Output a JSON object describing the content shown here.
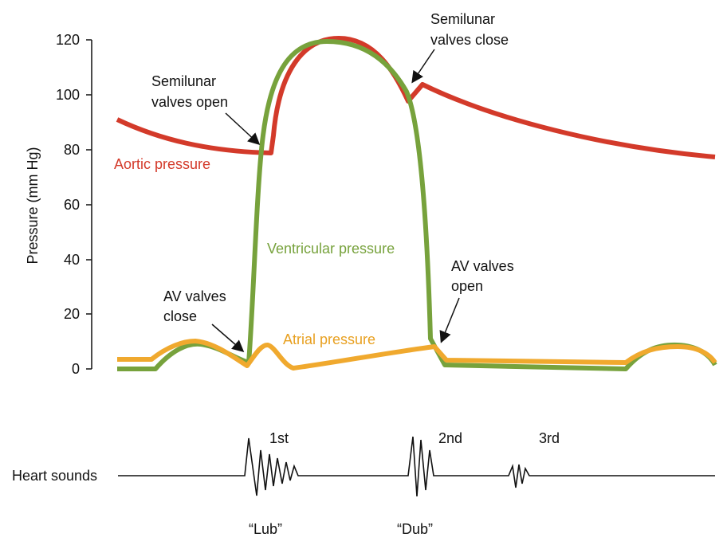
{
  "y_axis": {
    "label": "Pressure (mm Hg)",
    "ticks": [
      "120",
      "100",
      "80",
      "60",
      "40",
      "20",
      "0"
    ]
  },
  "curves": {
    "aortic": {
      "label": "Aortic pressure",
      "color": "#d33a2a"
    },
    "ventricular": {
      "label": "Ventricular pressure",
      "color": "#77a23c"
    },
    "atrial": {
      "label": "Atrial pressure",
      "color": "#f0a92e"
    }
  },
  "annotations": {
    "semilunar_open": [
      "Semilunar",
      "valves open"
    ],
    "semilunar_close": [
      "Semilunar",
      "valves close"
    ],
    "av_close": [
      "AV valves",
      "close"
    ],
    "av_open": [
      "AV valves",
      "open"
    ]
  },
  "heart_sounds": {
    "label": "Heart sounds",
    "first": "1st",
    "second": "2nd",
    "third": "3rd",
    "lub": "“Lub”",
    "dub": "“Dub”"
  }
}
